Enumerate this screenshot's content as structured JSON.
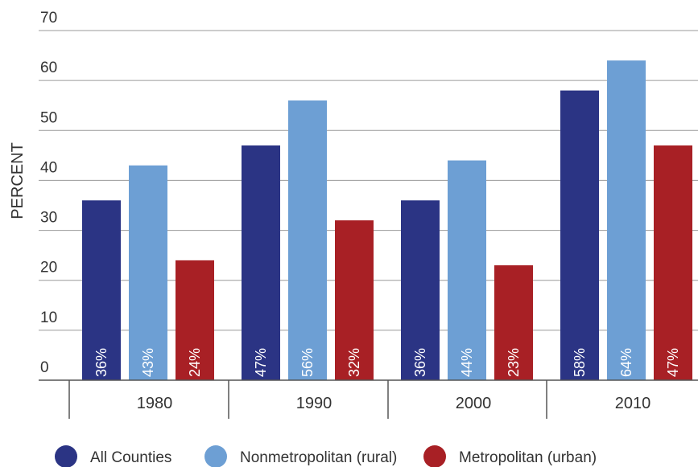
{
  "chart_data": {
    "type": "bar",
    "title": "",
    "xlabel": "",
    "ylabel": "PERCENT",
    "ylim": [
      0,
      70
    ],
    "yticks": [
      0,
      10,
      20,
      30,
      40,
      50,
      60,
      70
    ],
    "grid": true,
    "legend_position": "bottom",
    "categories": [
      "1980",
      "1990",
      "2000",
      "2010"
    ],
    "series": [
      {
        "name": "All Counties",
        "color": "#2b3484",
        "values": [
          36,
          47,
          36,
          58
        ],
        "labels": [
          "36%",
          "47%",
          "36%",
          "58%"
        ]
      },
      {
        "name": "Nonmetropolitan (rural)",
        "color": "#6d9fd4",
        "values": [
          43,
          56,
          44,
          64
        ],
        "labels": [
          "43%",
          "56%",
          "44%",
          "64%"
        ]
      },
      {
        "name": "Metropolitan (urban)",
        "color": "#a82025",
        "values": [
          24,
          32,
          23,
          47
        ],
        "labels": [
          "24%",
          "32%",
          "23%",
          "47%"
        ]
      }
    ]
  }
}
